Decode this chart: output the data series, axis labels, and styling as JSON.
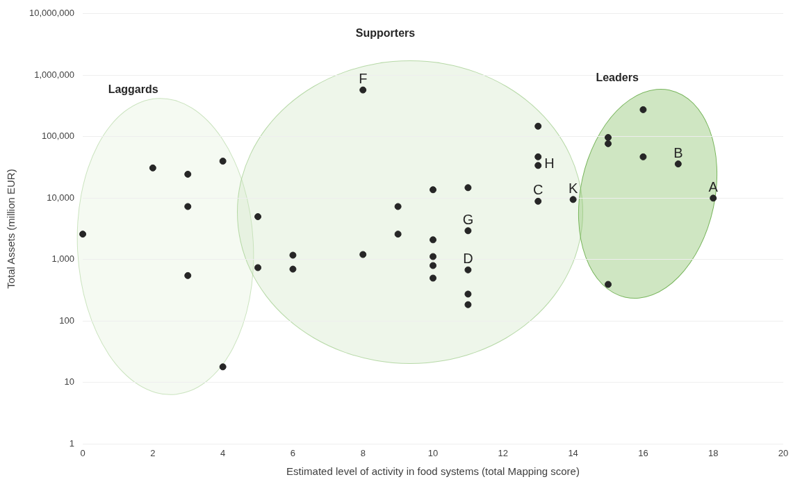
{
  "chart_data": {
    "type": "scatter",
    "xlabel": "Estimated level of activity in food systems (total Mapping score)",
    "ylabel": "Total Assets (million EUR)",
    "series": [
      {
        "color": "#262626",
        "x": [
          0,
          2,
          3,
          3,
          3,
          4,
          4,
          5,
          5,
          6,
          6,
          8,
          8,
          9,
          9,
          10,
          10,
          10,
          10,
          10,
          11,
          11,
          11,
          11,
          11,
          13,
          13,
          13,
          13,
          14,
          15,
          15,
          15,
          16,
          16,
          17,
          18
        ],
        "values": [
          2600,
          31000,
          24500,
          7300,
          550,
          40000,
          18,
          5000,
          740,
          1180,
          700,
          575000,
          1210,
          7300,
          2600,
          13700,
          2100,
          1120,
          800,
          500,
          14800,
          2950,
          680,
          275,
          185,
          148000,
          47000,
          34000,
          8900,
          9500,
          97000,
          77000,
          395,
          275000,
          47000,
          36000,
          10000
        ]
      }
    ],
    "xlim": [
      0,
      20
    ],
    "xticks": [
      0,
      2,
      4,
      6,
      8,
      10,
      12,
      14,
      16,
      18,
      20
    ],
    "ylim": [
      1,
      10000000
    ],
    "yticks": [
      {
        "value": 1,
        "label": "1"
      },
      {
        "value": 10,
        "label": "10"
      },
      {
        "value": 100,
        "label": "100"
      },
      {
        "value": 1000,
        "label": "1,000"
      },
      {
        "value": 10000,
        "label": "10,000"
      },
      {
        "value": 100000,
        "label": "100,000"
      },
      {
        "value": 1000000,
        "label": "1,000,000"
      },
      {
        "value": 10000000,
        "label": "10,000,000"
      }
    ],
    "log": "y",
    "grid": "y",
    "marker": "circle",
    "legend": false,
    "annotations": [
      "Laggards",
      "Supporters",
      "Leaders",
      {
        "text": "F",
        "x": 8,
        "y": 575000
      },
      {
        "text": "G",
        "x": 11,
        "y": 2950
      },
      {
        "text": "D",
        "x": 11,
        "y": 680
      },
      {
        "text": "H",
        "x": 13,
        "y": 34000
      },
      {
        "text": "C",
        "x": 13,
        "y": 8900
      },
      {
        "text": "K",
        "x": 14,
        "y": 9500
      },
      {
        "text": "B",
        "x": 17,
        "y": 36000
      },
      {
        "text": "A",
        "x": 18,
        "y": 10000
      }
    ]
  }
}
